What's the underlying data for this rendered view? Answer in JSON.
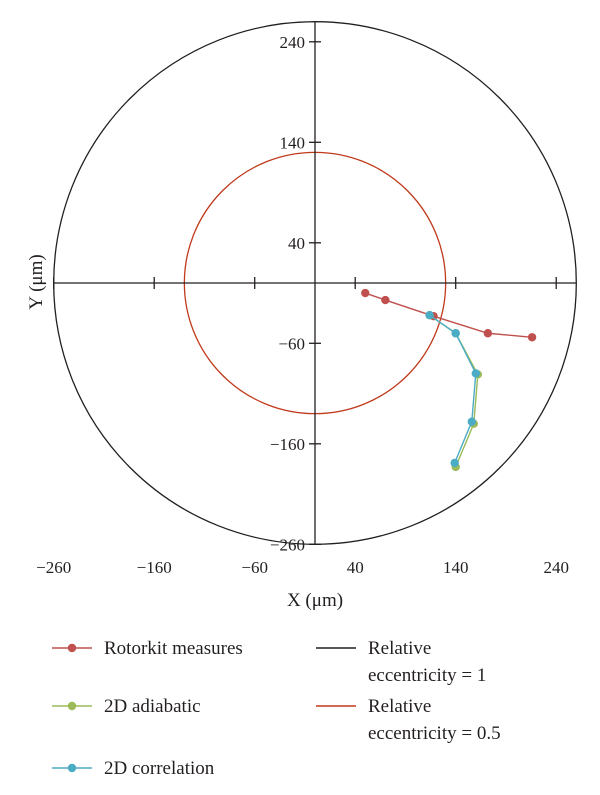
{
  "chart_data": {
    "type": "scatter",
    "title": "",
    "xlabel": "X (μm)",
    "ylabel": "Y (μm)",
    "xlim": [
      -260,
      260
    ],
    "ylim": [
      -260,
      260
    ],
    "xticks": [
      -260,
      -160,
      -60,
      40,
      140,
      240
    ],
    "yticks": [
      -260,
      -160,
      -60,
      40,
      140,
      240
    ],
    "grid": false,
    "legend_position": "bottom",
    "circles": [
      {
        "name": "Relative\neccentricity = 1",
        "radius": 260,
        "color": "#231f20"
      },
      {
        "name": "Relative\neccentricity = 0.5",
        "radius": 130,
        "color": "#c0391b"
      }
    ],
    "series": [
      {
        "name": "Rotorkit measures",
        "color": "#c0504d",
        "points": [
          [
            50,
            -10
          ],
          [
            70,
            -17
          ],
          [
            118,
            -33
          ],
          [
            172,
            -50
          ],
          [
            216,
            -54
          ]
        ]
      },
      {
        "name": "2D adiabatic",
        "color": "#9bbb59",
        "points": [
          [
            114,
            -32
          ],
          [
            140,
            -50
          ],
          [
            162,
            -91
          ],
          [
            158,
            -140
          ],
          [
            140,
            -183
          ]
        ]
      },
      {
        "name": "2D correlation",
        "color": "#4bacc6",
        "points": [
          [
            114,
            -32
          ],
          [
            140,
            -50
          ],
          [
            160,
            -90
          ],
          [
            156,
            -138
          ],
          [
            139,
            -179
          ]
        ]
      }
    ]
  }
}
